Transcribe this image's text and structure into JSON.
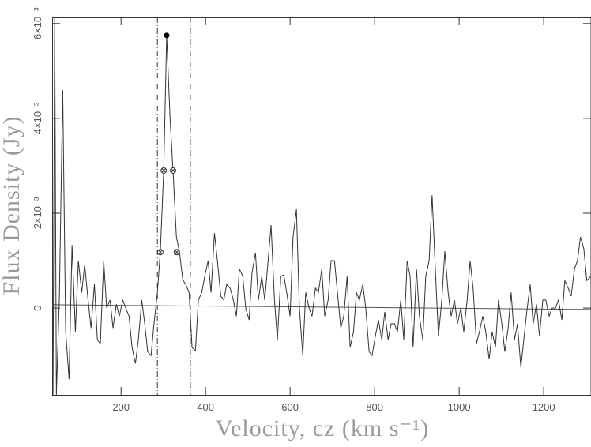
{
  "chart_data": {
    "type": "line",
    "xlabel": "Velocity, cz (km s⁻¹)",
    "ylabel": "Flux Density (Jy)",
    "xlim": [
      37,
      1312
    ],
    "ylim": [
      -0.00183,
      0.00613
    ],
    "xticks": [
      200,
      400,
      600,
      800,
      1000,
      1200
    ],
    "yticks": [
      0,
      {
        "value": 0.002,
        "label": "2×10⁻³"
      },
      {
        "value": 0.004,
        "label": "4×10⁻³"
      },
      {
        "value": 0.006,
        "label": "6×10⁻³"
      }
    ],
    "color": "#333333",
    "x": [
      39,
      43,
      47,
      54,
      62,
      69,
      77,
      84,
      92,
      99,
      107,
      114,
      122,
      129,
      137,
      144,
      151,
      159,
      166,
      174,
      181,
      189,
      196,
      204,
      211,
      219,
      226,
      234,
      241,
      249,
      256,
      263,
      271,
      278,
      286,
      293,
      301,
      308,
      316,
      323,
      331,
      338,
      346,
      353,
      361,
      368,
      376,
      383,
      391,
      398,
      406,
      413,
      421,
      428,
      436,
      443,
      450,
      458,
      465,
      473,
      480,
      488,
      495,
      503,
      510,
      518,
      525,
      533,
      540,
      548,
      555,
      563,
      570,
      578,
      585,
      592,
      600,
      607,
      615,
      622,
      630,
      637,
      645,
      652,
      660,
      667,
      675,
      682,
      690,
      697,
      705,
      712,
      720,
      727,
      735,
      742,
      750,
      757,
      764,
      772,
      779,
      787,
      794,
      802,
      809,
      817,
      824,
      832,
      839,
      847,
      854,
      862,
      869,
      877,
      884,
      891,
      899,
      906,
      914,
      921,
      929,
      936,
      944,
      951,
      959,
      966,
      974,
      981,
      989,
      996,
      1004,
      1011,
      1019,
      1026,
      1033,
      1041,
      1048,
      1056,
      1063,
      1071,
      1078,
      1086,
      1093,
      1101,
      1108,
      1116,
      1123,
      1131,
      1138,
      1146,
      1153,
      1160,
      1168,
      1175,
      1183,
      1190,
      1198,
      1205,
      1213,
      1220,
      1228,
      1235,
      1243,
      1250,
      1258,
      1265,
      1273,
      1280,
      1287,
      1295,
      1302,
      1312
    ],
    "values": [
      -0.00183,
      0.00613,
      -0.00183,
      0.0002,
      0.0046,
      -0.0005,
      -0.0015,
      0.00133,
      -0.0005,
      0.001,
      0.00033,
      0.00092,
      0.00017,
      -0.00042,
      0.0005,
      -0.00067,
      -0.00075,
      0.001,
      0,
      0.00017,
      -0.00042,
      8e-05,
      -0.00017,
      0.00017,
      0,
      -0.00017,
      -0.00083,
      -0.00117,
      -0.00067,
      0.00017,
      -0.00033,
      -0.00092,
      -0.001,
      -0.00033,
      0.00033,
      0.0012,
      0.0029,
      0.00575,
      0.004,
      0.0029,
      0.0015,
      0.0012,
      0.0006,
      0.0005,
      0.00033,
      -0.00083,
      -0.0009,
      0.00017,
      0.00033,
      0.00067,
      0.001,
      0.00033,
      0.00158,
      0.001,
      0.00025,
      0.00017,
      0.0005,
      0.00042,
      0.0002,
      -0.00017,
      0.00083,
      0.00067,
      0,
      -0.00025,
      0.00075,
      0.00117,
      0.00017,
      0.00067,
      0.00017,
      0.001,
      0.00175,
      0.00017,
      -0.00067,
      0.00067,
      0.0007,
      0.00033,
      -0.00017,
      0.0015,
      0.00208,
      0,
      -0.001,
      0.00033,
      0,
      -0.00017,
      0.00042,
      0.00033,
      0.00083,
      -0.00017,
      0.00017,
      0.001,
      0.001,
      0.00033,
      -0.00042,
      -0.00017,
      0.00067,
      -0.00083,
      -0.0005,
      0.00033,
      0.00017,
      0.0005,
      0,
      -0.00092,
      -0.001,
      -0.00058,
      -0.00025,
      -0.00067,
      -8e-05,
      -0.00067,
      -0.00033,
      -0.00033,
      -0.0005,
      0.00017,
      -0.00067,
      0.001,
      0.00067,
      -0.00083,
      0.00083,
      -0.00017,
      -0.00067,
      0.00067,
      0.001,
      0.00238,
      0.00075,
      -0.00058,
      0.00017,
      0.0012,
      0.00033,
      -0.00017,
      0.00017,
      -0.00033,
      0,
      -0.0005,
      0.00017,
      0.001,
      0.00042,
      -0.00075,
      -0.0005,
      -0.00017,
      -0.0005,
      -0.00108,
      -0.0005,
      -0.00083,
      0.00017,
      -0.00033,
      -0.00092,
      -0.00042,
      0.00033,
      -0.00067,
      -0.00033,
      -0.00125,
      -0.00067,
      -8e-05,
      0.0005,
      -0.00033,
      8e-05,
      -0.00058,
      0.00017,
      0.00017,
      -0.00017,
      0,
      0,
      0.00017,
      -0.00025,
      0.00058,
      0.00042,
      0.00025,
      0.00083,
      0.001,
      0.0015,
      0.00125,
      0.00058,
      0.00067
    ],
    "baseline": {
      "x": [
        37,
        1312
      ],
      "values": [
        7e-05,
        -3e-05
      ]
    },
    "window": [
      286,
      364
    ],
    "peak": {
      "x": 308,
      "value": 0.00575
    },
    "width_points": {
      "x": [
        293,
        301,
        323,
        332
      ],
      "values": [
        0.00118,
        0.0029,
        0.0029,
        0.00118
      ]
    }
  }
}
